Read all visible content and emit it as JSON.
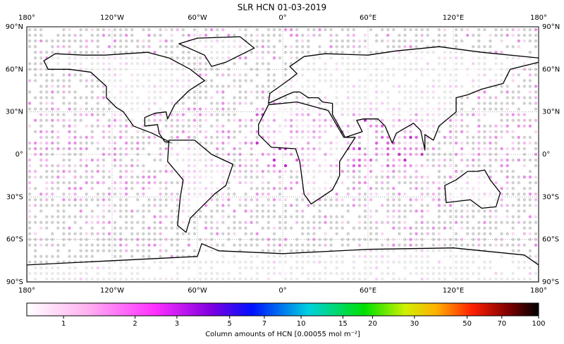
{
  "chart_data": {
    "type": "map",
    "title": "SLR HCN 01-03-2019",
    "xlim": [
      -180,
      180
    ],
    "xticks": [
      {
        "value": -180,
        "label": "180°"
      },
      {
        "value": -120,
        "label": "120°W"
      },
      {
        "value": -60,
        "label": "60°W"
      },
      {
        "value": 0,
        "label": "0°"
      },
      {
        "value": 60,
        "label": "60°E"
      },
      {
        "value": 120,
        "label": "120°E"
      },
      {
        "value": 180,
        "label": "180°"
      }
    ],
    "ylim": [
      -90,
      90
    ],
    "yticks": [
      {
        "value": -90,
        "label": "90°S"
      },
      {
        "value": -60,
        "label": "60°S"
      },
      {
        "value": -30,
        "label": "30°S"
      },
      {
        "value": 0,
        "label": "0°"
      },
      {
        "value": 30,
        "label": "30°N"
      },
      {
        "value": 60,
        "label": "60°N"
      },
      {
        "value": 90,
        "label": "90°N"
      }
    ],
    "grid": true,
    "colorbar": {
      "label": "Column amounts of HCN [0.00055 mol m⁻²]",
      "lim": [
        0.7,
        100
      ],
      "log": true,
      "ticks": [
        1,
        2,
        3,
        5,
        7,
        10,
        15,
        20,
        30,
        50,
        70,
        100
      ]
    }
  }
}
